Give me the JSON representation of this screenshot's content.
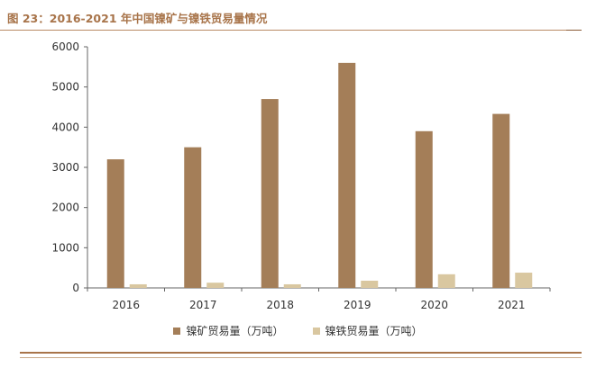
{
  "figure_title": "图 23：2016-2021 年中国镍矿与镍铁贸易量情况",
  "colors": {
    "title": "#a8744a",
    "series_ore": "#a47e58",
    "series_ferro": "#d9c7a0",
    "axis": "#666666"
  },
  "legend": {
    "ore_label": "镍矿贸易量（万吨）",
    "ferro_label": "镍铁贸易量（万吨）"
  },
  "chart_data": {
    "type": "bar",
    "title": "",
    "xlabel": "",
    "ylabel": "",
    "categories": [
      "2016",
      "2017",
      "2018",
      "2019",
      "2020",
      "2021"
    ],
    "ylim": [
      0,
      6000
    ],
    "yticks": [
      0,
      1000,
      2000,
      3000,
      4000,
      5000,
      6000
    ],
    "grid": false,
    "legend_position": "bottom",
    "series": [
      {
        "name": "镍矿贸易量（万吨）",
        "values": [
          3200,
          3500,
          4700,
          5600,
          3900,
          4330
        ]
      },
      {
        "name": "镍铁贸易量（万吨）",
        "values": [
          90,
          130,
          90,
          180,
          340,
          380
        ]
      }
    ]
  }
}
